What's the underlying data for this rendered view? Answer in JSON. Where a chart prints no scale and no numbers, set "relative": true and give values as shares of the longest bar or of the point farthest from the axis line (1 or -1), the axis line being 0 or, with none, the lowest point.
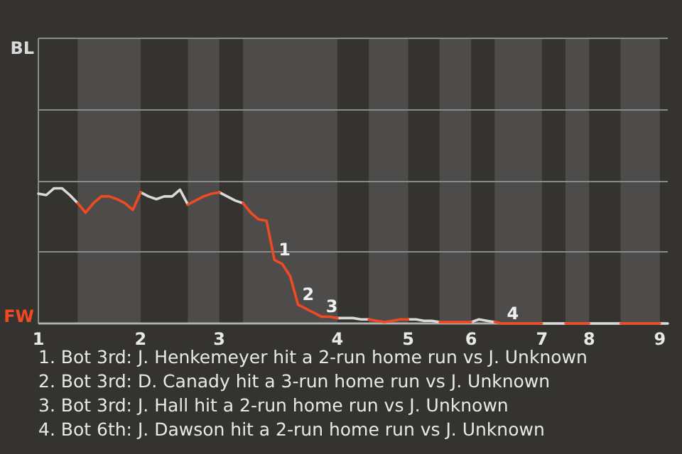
{
  "chart_data": {
    "type": "line",
    "relative": true,
    "categories": [
      "1",
      null,
      null,
      null,
      null,
      null,
      null,
      null,
      null,
      null,
      null,
      null,
      null,
      "2",
      null,
      null,
      null,
      null,
      null,
      null,
      null,
      null,
      null,
      "3",
      null,
      null,
      null,
      null,
      null,
      null,
      null,
      null,
      null,
      null,
      null,
      null,
      null,
      null,
      "4",
      null,
      null,
      null,
      null,
      null,
      null,
      null,
      null,
      "5",
      null,
      null,
      null,
      null,
      null,
      null,
      null,
      "6",
      null,
      null,
      null,
      null,
      null,
      null,
      null,
      null,
      "7",
      null,
      null,
      null,
      null,
      null,
      "8",
      null,
      null,
      null,
      null,
      null,
      null,
      null,
      null,
      "9",
      null
    ],
    "legend": "left",
    "marker": "none",
    "line_style": "solid",
    "series": [
      {
        "name": "BL",
        "color": "#d9d9d9",
        "values": [
          0.96,
          0.95,
          1,
          1,
          0.95,
          0.89,
          null,
          null,
          null,
          null,
          null,
          null,
          null,
          0.97,
          0.94,
          0.92,
          0.94,
          0.94,
          0.99,
          0.88,
          null,
          null,
          null,
          0.97,
          0.94,
          0.91,
          0.89,
          null,
          null,
          null,
          null,
          null,
          null,
          null,
          null,
          null,
          null,
          null,
          0.04,
          0.04,
          0.04,
          0.03,
          0.03,
          null,
          null,
          null,
          null,
          0.03,
          0.03,
          0.02,
          0.02,
          0.01,
          null,
          null,
          null,
          0.01,
          0.03,
          0.02,
          0.01,
          null,
          null,
          null,
          null,
          null,
          0,
          0,
          0,
          0,
          null,
          null,
          0,
          0,
          0,
          0,
          0,
          null,
          null,
          null,
          null,
          0,
          0
        ]
      },
      {
        "name": "FW",
        "color": "#f04a23",
        "values": [
          null,
          null,
          null,
          null,
          null,
          0.89,
          0.82,
          0.89,
          0.94,
          0.94,
          0.92,
          0.89,
          0.84,
          0.97,
          null,
          null,
          null,
          null,
          null,
          0.88,
          0.91,
          0.94,
          0.96,
          0.97,
          null,
          null,
          0.89,
          0.82,
          0.77,
          0.76,
          0.47,
          0.44,
          0.35,
          0.14,
          0.11,
          0.08,
          0.05,
          0.05,
          0.04,
          null,
          null,
          null,
          0.03,
          0.02,
          0.01,
          0.02,
          0.03,
          0.03,
          null,
          null,
          null,
          0.01,
          0.01,
          0.01,
          0.01,
          0.01,
          null,
          null,
          0.01,
          0,
          0,
          0,
          0,
          0,
          0,
          null,
          null,
          0,
          0,
          0,
          0,
          null,
          null,
          null,
          0,
          0,
          0,
          0,
          0,
          0,
          null
        ]
      }
    ],
    "ref_lines": [
      {
        "axis": "y",
        "value": 0.53,
        "color": "#8a8a8a"
      },
      {
        "axis": "y",
        "value": 1.05,
        "color": "#8a8a8a"
      },
      {
        "axis": "y",
        "value": 1.58,
        "color": "#8a8a8a"
      }
    ],
    "annotations": [
      {
        "text": "1",
        "y": 0.47
      },
      {
        "text": "2",
        "y": 0.14
      },
      {
        "text": "3",
        "y": 0.05
      },
      {
        "text": "4",
        "y": 0
      },
      "1. Bot 3rd: J. Henkemeyer hit a 2-run home run vs J. Unknown",
      "2. Bot 3rd: D. Canady hit a 3-run home run vs J. Unknown",
      "3. Bot 3rd: J. Hall hit a 2-run home run vs J. Unknown",
      "4. Bot 6th: J. Dawson hit a 2-run home run vs J. Unknown"
    ]
  }
}
